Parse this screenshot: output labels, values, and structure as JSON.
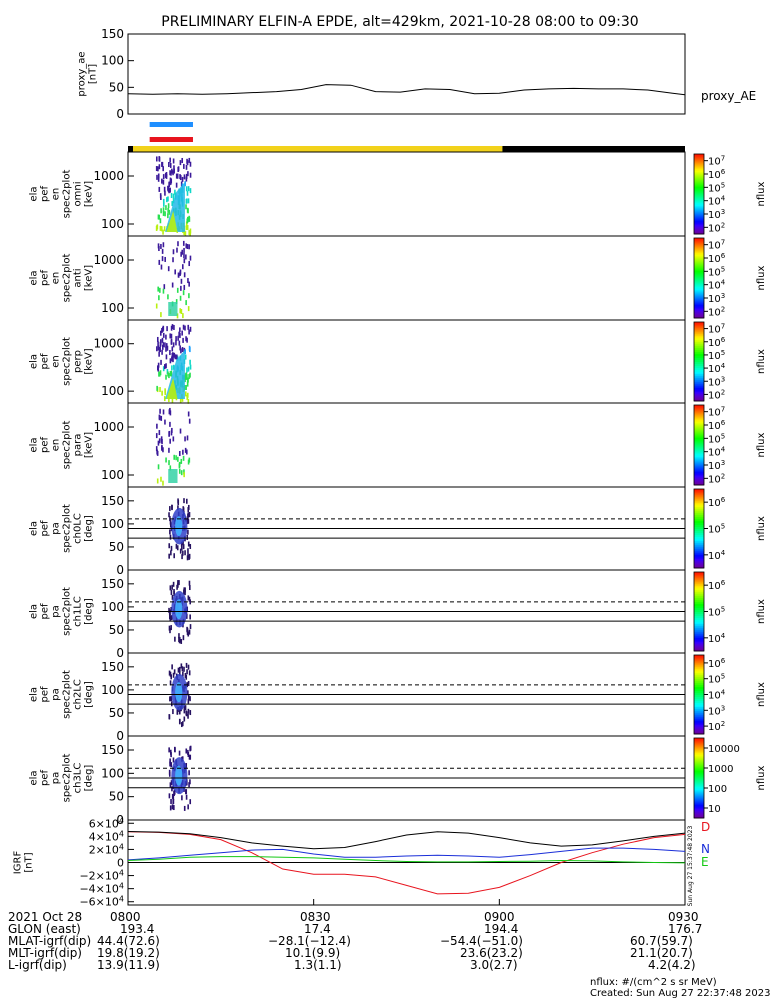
{
  "title": "PRELIMINARY ELFIN-A EPDE, alt=429km, 2021-10-28 08:00 to 09:30",
  "colors": {
    "ae_line": "#000000",
    "bar_blue": "#1f8fff",
    "bar_red": "#e8141e",
    "bar_yellow": "#f2d21b",
    "bar_black": "#000000",
    "igrf_d": "#e8141e",
    "igrf_n": "#1a2ed8",
    "igrf_e": "#14c814",
    "igrf_total": "#000000"
  },
  "chart_data": [
    {
      "type": "line",
      "panel": "ae",
      "ylabel": [
        "proxy_ae",
        "[nT]"
      ],
      "ylim": [
        0,
        150
      ],
      "yticks": [
        "0",
        "50",
        "100",
        "150"
      ],
      "series_label": "proxy_AE",
      "x": [
        0,
        4,
        8,
        12,
        16,
        20,
        24,
        28,
        32,
        36,
        40,
        44,
        48,
        52,
        56,
        60,
        64,
        68,
        72,
        76,
        80,
        84,
        88,
        90
      ],
      "values": [
        38,
        37,
        38,
        37,
        38,
        40,
        42,
        46,
        55,
        54,
        42,
        41,
        47,
        46,
        38,
        39,
        45,
        47,
        48,
        47,
        47,
        45,
        39,
        36
      ]
    },
    {
      "type": "heatmap",
      "panel": "spectra",
      "ylabel": [
        [
          "ela",
          "pef",
          "en",
          "spec2plot",
          "omni",
          "[keV]"
        ],
        [
          "ela",
          "pef",
          "en",
          "spec2plot",
          "anti",
          "[keV]"
        ],
        [
          "ela",
          "pef",
          "en",
          "spec2plot",
          "perp",
          "[keV]"
        ],
        [
          "ela",
          "pef",
          "en",
          "spec2plot",
          "para",
          "[keV]"
        ]
      ],
      "yticks": [
        "100",
        "1000"
      ],
      "colorbar_label": "nflux",
      "colorbar_ticks": [
        "10^2",
        "10^3",
        "10^4",
        "10^5",
        "10^6",
        "10^7"
      ]
    },
    {
      "type": "heatmap",
      "panel": "pitch",
      "ylabel": [
        [
          "ela",
          "pef",
          "pa",
          "spec2plot",
          "ch0LC",
          "[deg]"
        ],
        [
          "ela",
          "pef",
          "pa",
          "spec2plot",
          "ch1LC",
          "[deg]"
        ],
        [
          "ela",
          "pef",
          "pa",
          "spec2plot",
          "ch2LC",
          "[deg]"
        ],
        [
          "ela",
          "pef",
          "pa",
          "spec2plot",
          "ch3LC",
          "[deg]"
        ]
      ],
      "ylim": [
        0,
        180
      ],
      "yticks": [
        "0",
        "50",
        "100",
        "150"
      ],
      "colorbar_label": "nflux",
      "colorbar_ticks": [
        [
          "10^4",
          "10^5",
          "10^6"
        ],
        [
          "10^4",
          "10^5",
          "10^6"
        ],
        [
          "10^2",
          "10^3",
          "10^4",
          "10^5",
          "10^6"
        ],
        [
          "10",
          "100",
          "1000",
          "10000"
        ]
      ]
    },
    {
      "type": "line",
      "panel": "igrf",
      "ylabel": [
        "IGRF",
        "[nT]"
      ],
      "ylim": [
        -65000,
        65000
      ],
      "yticks": [
        "6×10^4",
        "4×10^4",
        "2×10^4",
        "0",
        "−2×10^4",
        "−4×10^4",
        "−6×10^4"
      ],
      "x": [
        0,
        5,
        10,
        15,
        20,
        25,
        30,
        35,
        40,
        45,
        50,
        55,
        60,
        65,
        70,
        75,
        80,
        85,
        90
      ],
      "series": [
        {
          "name": "D",
          "values": [
            47000,
            46000,
            43000,
            35000,
            15000,
            -10000,
            -18000,
            -18000,
            -22000,
            -35000,
            -48000,
            -47000,
            -38000,
            -20000,
            0,
            15000,
            28000,
            38000,
            43000
          ]
        },
        {
          "name": "N",
          "values": [
            4000,
            7000,
            11000,
            15000,
            19000,
            20000,
            13000,
            8000,
            8000,
            10000,
            11000,
            10000,
            8000,
            12000,
            17000,
            22000,
            22000,
            20000,
            17000
          ]
        },
        {
          "name": "E",
          "values": [
            3000,
            5000,
            8000,
            9000,
            9000,
            8000,
            7000,
            5000,
            3000,
            1500,
            1000,
            1000,
            1500,
            2000,
            3000,
            2500,
            1000,
            0,
            -500
          ]
        },
        {
          "name": "",
          "values": [
            47500,
            46500,
            44000,
            38000,
            30000,
            25000,
            21000,
            23000,
            32000,
            42000,
            47000,
            45000,
            38000,
            30000,
            25000,
            27000,
            33000,
            40000,
            45000
          ]
        }
      ]
    }
  ],
  "footer": {
    "labels": [
      "2021 Oct 28",
      "GLON (east)",
      "MLAT-igrf(dip)",
      "MLT-igrf(dip)",
      "L-igrf(dip)"
    ],
    "columns": [
      {
        "time": "0800",
        "glon": "193.4",
        "mlat": "44.4(72.6)",
        "mlt": "19.8(19.2)",
        "l": "13.9(11.9)"
      },
      {
        "time": "0830",
        "glon": "17.4",
        "mlat": "−28.1(−12.4)",
        "mlt": "10.1(9.9)",
        "l": "1.3(1.1)"
      },
      {
        "time": "0900",
        "glon": "194.4",
        "mlat": "−54.4(−51.0)",
        "mlt": "23.6(23.2)",
        "l": "3.0(2.7)"
      },
      {
        "time": "0930",
        "glon": "176.7",
        "mlat": "60.7(59.7)",
        "mlt": "21.1(20.7)",
        "l": "4.2(4.2)"
      }
    ],
    "units": "nflux: #/(cm^2 s sr MeV)",
    "created": "Created: Sun Aug 27 22:37:48 2023",
    "side_stamp": "Sun Aug 27 15:37:48 2023"
  }
}
